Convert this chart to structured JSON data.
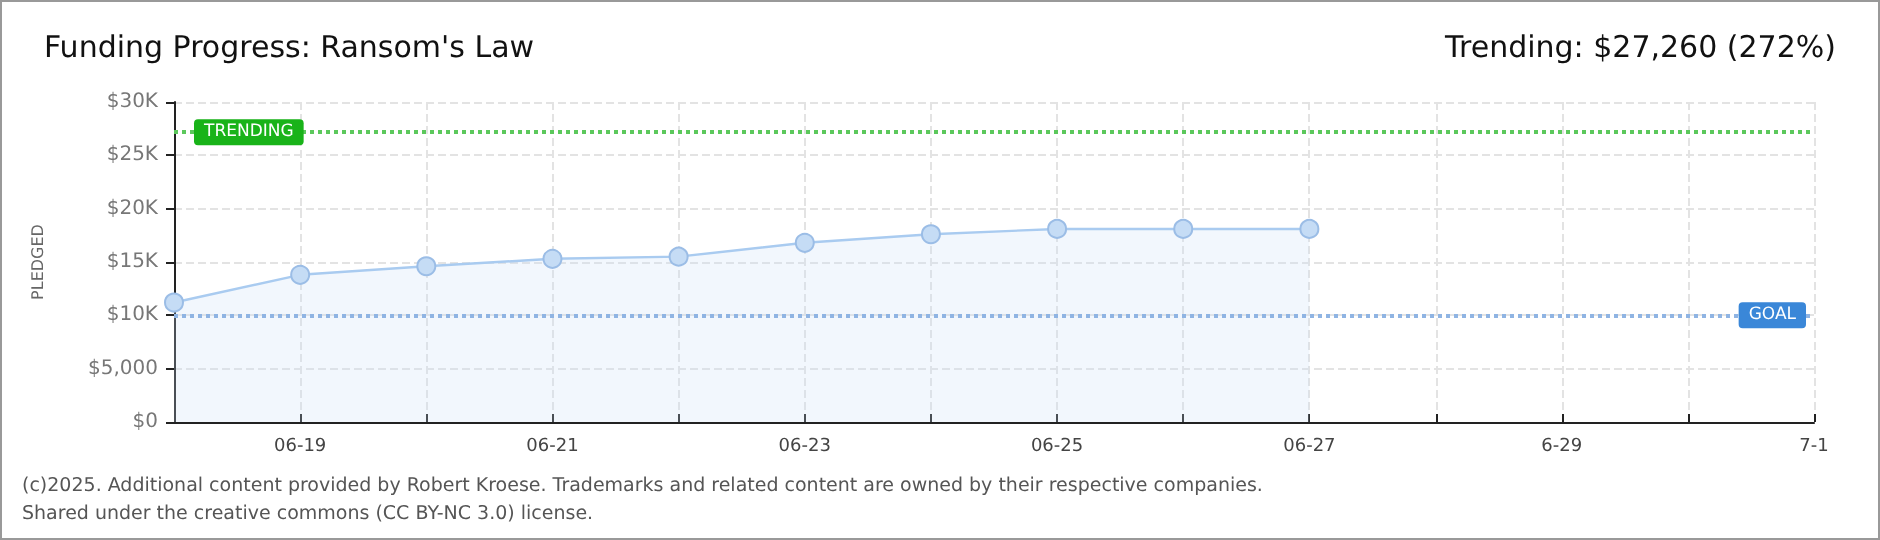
{
  "chart_data": {
    "type": "area",
    "title": "Funding Progress: Ransom's Law",
    "subtitle": "Trending: $27,260 (272%)",
    "ylabel": "PLEDGED",
    "x": [
      "--06-18",
      "--06-19",
      "--06-20",
      "--06-21",
      "--06-22",
      "--06-23",
      "--06-24",
      "--06-25",
      "--06-26",
      "--06-27"
    ],
    "series": [
      {
        "color": "#a9cbf0",
        "values": [
          11200,
          13800,
          14600,
          15300,
          15500,
          16800,
          17600,
          18100,
          18100,
          18100
        ]
      }
    ],
    "xlim": [
      "--06-18",
      "--07-01"
    ],
    "xticks": [
      {
        "value": "--06-18",
        "label": null
      },
      {
        "value": "--06-19",
        "label": "06-19"
      },
      {
        "value": "--06-20",
        "label": null
      },
      {
        "value": "--06-21",
        "label": "06-21"
      },
      {
        "value": "--06-22",
        "label": null
      },
      {
        "value": "--06-23",
        "label": "06-23"
      },
      {
        "value": "--06-24",
        "label": null
      },
      {
        "value": "--06-25",
        "label": "06-25"
      },
      {
        "value": "--06-26",
        "label": null
      },
      {
        "value": "--06-27",
        "label": "06-27"
      },
      {
        "value": "--06-28",
        "label": null
      },
      {
        "value": "--06-29",
        "label": "6-29"
      },
      {
        "value": "--06-30",
        "label": null
      },
      {
        "value": "--07-01",
        "label": "7-1"
      }
    ],
    "ylim": [
      0,
      30000
    ],
    "yticks": [
      {
        "value": 0,
        "label": "$0"
      },
      {
        "value": 5000,
        "label": "$5,000"
      },
      {
        "value": 10000,
        "label": "$10K"
      },
      {
        "value": 15000,
        "label": "$15K"
      },
      {
        "value": 20000,
        "label": "$20K"
      },
      {
        "value": 25000,
        "label": "$25K"
      },
      {
        "value": 30000,
        "label": "$30K"
      }
    ],
    "ref_lines": [
      {
        "axis": "y",
        "value": 27260,
        "label": "TRENDING",
        "color": "#5cc85c",
        "line_style": "dotted"
      },
      {
        "axis": "y",
        "value": 10000,
        "label": "GOAL",
        "color": "#8fb4e3",
        "line_style": "dotted"
      }
    ],
    "grid": true,
    "marker": "circle",
    "annotations": [
      "(c)2025. Additional content provided by Robert Kroese. Trademarks and related content are owned by their respective companies.",
      "Shared under the creative commons (CC BY-NC 3.0) license."
    ]
  }
}
